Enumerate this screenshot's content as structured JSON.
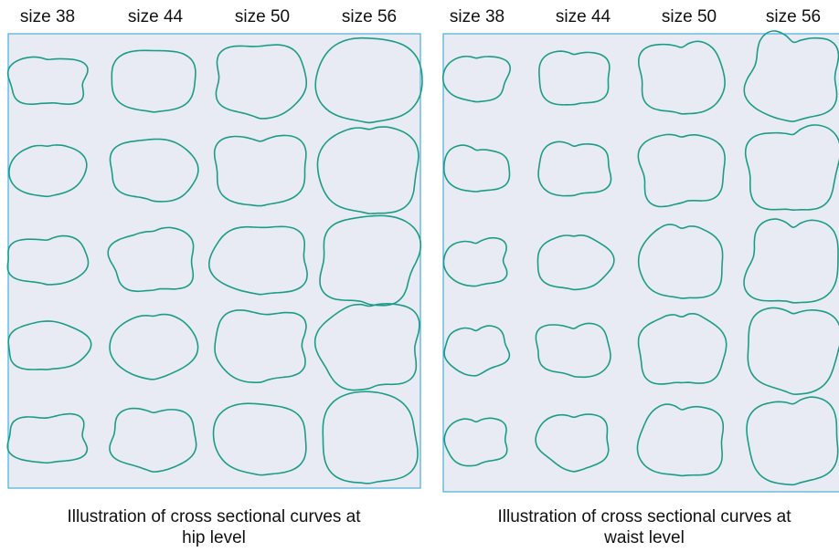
{
  "panels": [
    {
      "column_labels": [
        "size 38",
        "size 44",
        "size 50",
        "size 56"
      ],
      "caption": [
        "Illustration of cross sectional curves at",
        "hip level"
      ]
    },
    {
      "column_labels": [
        "size 38",
        "size 44",
        "size 50",
        "size 56"
      ],
      "caption": [
        "Illustration of cross sectional curves at",
        "waist level"
      ]
    }
  ]
}
